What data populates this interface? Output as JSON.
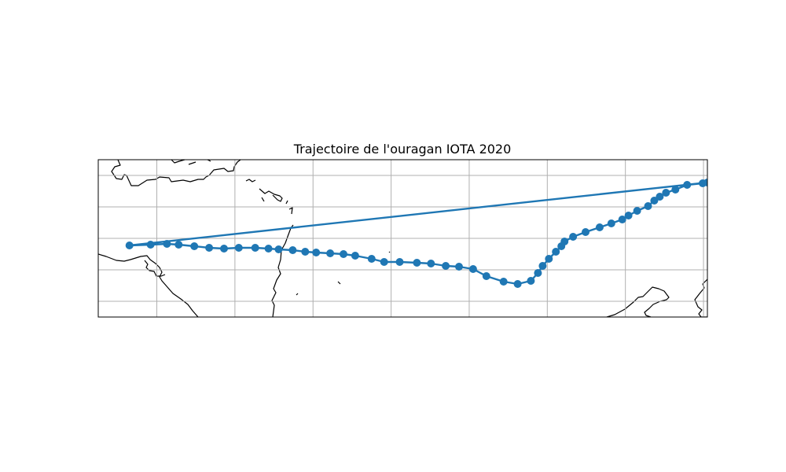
{
  "title": "Trajectoire de l'ouragan IOTA 2020",
  "colors": {
    "track": "#1f77b4",
    "grid": "#b0b0b0",
    "coast": "#000000"
  },
  "map": {
    "lon_range": [
      -89.5,
      -11.5
    ],
    "lat_range": [
      8.0,
      28.0
    ],
    "gridlines": true,
    "gridlines_lon": [
      -82,
      -72,
      -62,
      -52,
      -42,
      -32,
      -22,
      -12
    ],
    "gridlines_lat": [
      10,
      14,
      18,
      22,
      26
    ]
  },
  "chart_data": {
    "type": "line",
    "title": "Trajectoire de l'ouragan IOTA 2020",
    "xlabel": "",
    "ylabel": "",
    "grid": true,
    "series": [
      {
        "color": "#1f77b4",
        "marker": "circle",
        "lon": [
          -85.5,
          -82.8,
          -80.7,
          -79.2,
          -77.2,
          -75.3,
          -73.4,
          -71.5,
          -69.4,
          -67.7,
          -66.4,
          -64.6,
          -63.0,
          -61.6,
          -59.8,
          -58.1,
          -56.6,
          -54.5,
          -52.9,
          -50.9,
          -48.7,
          -46.9,
          -45.0,
          -43.3,
          -41.5,
          -39.8,
          -37.6,
          -35.8,
          -34.1,
          -33.2,
          -32.6,
          -31.8,
          -30.9,
          -30.2,
          -29.8,
          -28.7,
          -27.1,
          -25.3,
          -23.8,
          -22.4,
          -21.6,
          -20.5,
          -19.1,
          -18.3,
          -17.6,
          -16.8,
          -15.6,
          -14.1,
          -12.1,
          -11.5,
          -85.5
        ],
        "lat": [
          17.1,
          17.2,
          17.3,
          17.2,
          17.0,
          16.8,
          16.7,
          16.8,
          16.8,
          16.7,
          16.6,
          16.5,
          16.3,
          16.2,
          16.1,
          16.0,
          15.8,
          15.4,
          15.0,
          15.0,
          14.9,
          14.8,
          14.5,
          14.4,
          14.1,
          13.2,
          12.5,
          12.2,
          12.6,
          13.6,
          14.5,
          15.4,
          16.3,
          17.0,
          17.6,
          18.2,
          18.8,
          19.4,
          19.9,
          20.4,
          20.9,
          21.5,
          22.1,
          22.8,
          23.3,
          23.8,
          24.2,
          24.8,
          25.0,
          25.1,
          17.1
        ]
      }
    ]
  }
}
